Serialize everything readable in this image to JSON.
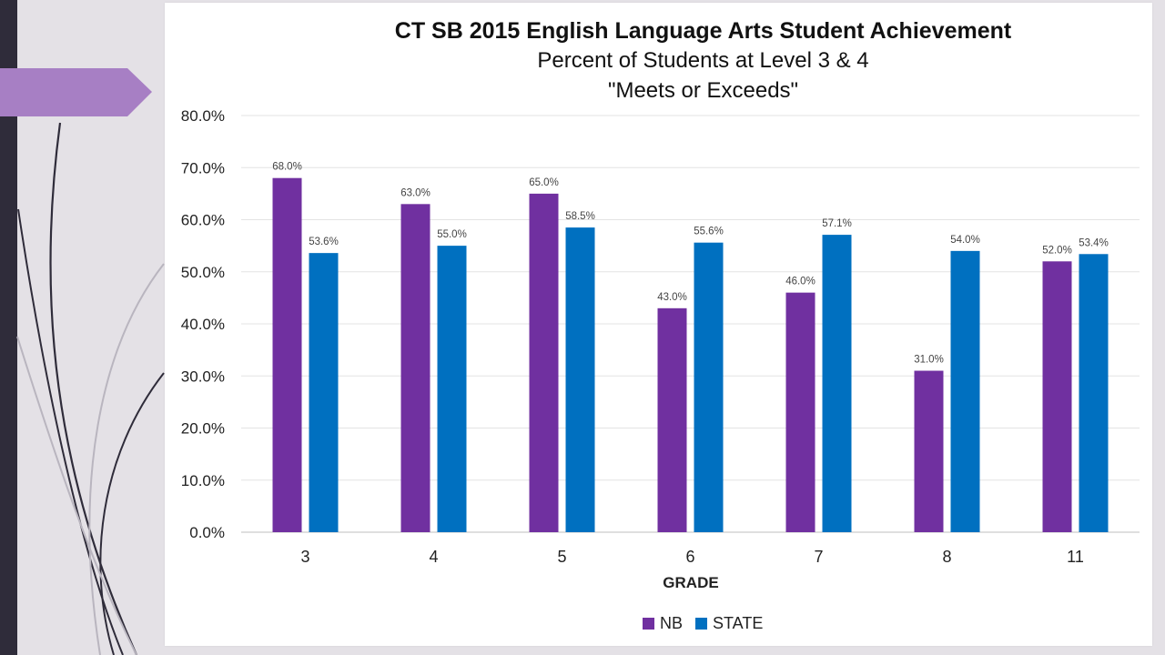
{
  "chart_data": {
    "type": "bar",
    "title": "CT SB 2015 English Language Arts Student Achievement",
    "subtitle": [
      "Percent of Students at Level 3 & 4",
      "\"Meets or Exceeds\""
    ],
    "xlabel": "GRADE",
    "ylabel": "",
    "categories": [
      "3",
      "4",
      "5",
      "6",
      "7",
      "8",
      "11"
    ],
    "series": [
      {
        "name": "NB",
        "color": "#7030a0",
        "values": [
          68.0,
          63.0,
          65.0,
          43.0,
          46.0,
          31.0,
          52.0
        ],
        "labels": [
          "68.0%",
          "63.0%",
          "65.0%",
          "43.0%",
          "46.0%",
          "31.0%",
          "52.0%"
        ]
      },
      {
        "name": "STATE",
        "color": "#0070c0",
        "values": [
          53.6,
          55.0,
          58.5,
          55.6,
          57.1,
          54.0,
          53.4
        ],
        "labels": [
          "53.6%",
          "55.0%",
          "58.5%",
          "55.6%",
          "57.1%",
          "54.0%",
          "53.4%"
        ]
      }
    ],
    "ylim": [
      0,
      80
    ],
    "yticks": [
      0,
      10,
      20,
      30,
      40,
      50,
      60,
      70,
      80
    ],
    "ytick_labels": [
      "0.0%",
      "10.0%",
      "20.0%",
      "30.0%",
      "40.0%",
      "50.0%",
      "60.0%",
      "70.0%",
      "80.0%"
    ],
    "grid": true,
    "legend_position": "bottom"
  },
  "theme": {
    "accent_purple": "#a77fc4",
    "sidebar_dark": "#2f2c3a"
  }
}
